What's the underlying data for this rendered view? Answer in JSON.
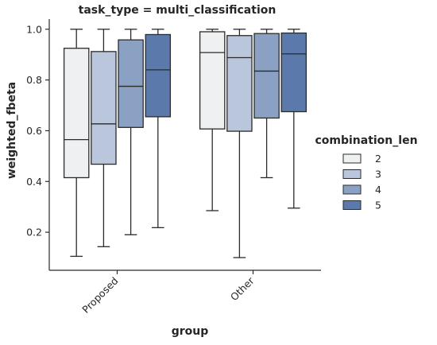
{
  "chart_data": {
    "type": "box",
    "title": "task_type = multi_classification",
    "xlabel": "group",
    "ylabel": "weighted_fbeta",
    "ylim": [
      0.05,
      1.04
    ],
    "yticks": [
      0.2,
      0.4,
      0.6,
      0.8,
      1.0
    ],
    "ytick_labels": [
      "0.2",
      "0.4",
      "0.6",
      "0.8",
      "1.0"
    ],
    "categories": [
      "Proposed",
      "Other"
    ],
    "grid": false,
    "legend": {
      "title": "combination_len",
      "placement": "right",
      "entries": [
        "2",
        "3",
        "4",
        "5"
      ]
    },
    "series": [
      {
        "name": "2",
        "color": "#eef0f2",
        "boxes": [
          {
            "category": "Proposed",
            "whisker_low": 0.105,
            "q1": 0.415,
            "median": 0.565,
            "q3": 0.925,
            "whisker_high": 1.0
          },
          {
            "category": "Other",
            "whisker_low": 0.285,
            "q1": 0.607,
            "median": 0.908,
            "q3": 0.99,
            "whisker_high": 1.0
          }
        ]
      },
      {
        "name": "3",
        "color": "#bac6db",
        "boxes": [
          {
            "category": "Proposed",
            "whisker_low": 0.143,
            "q1": 0.468,
            "median": 0.627,
            "q3": 0.912,
            "whisker_high": 1.0
          },
          {
            "category": "Other",
            "whisker_low": 0.1,
            "q1": 0.598,
            "median": 0.888,
            "q3": 0.975,
            "whisker_high": 1.0
          }
        ]
      },
      {
        "name": "4",
        "color": "#8ba1c4",
        "boxes": [
          {
            "category": "Proposed",
            "whisker_low": 0.19,
            "q1": 0.613,
            "median": 0.775,
            "q3": 0.958,
            "whisker_high": 1.0
          },
          {
            "category": "Other",
            "whisker_low": 0.415,
            "q1": 0.65,
            "median": 0.835,
            "q3": 0.983,
            "whisker_high": 1.0
          }
        ]
      },
      {
        "name": "5",
        "color": "#5b79ab",
        "boxes": [
          {
            "category": "Proposed",
            "whisker_low": 0.218,
            "q1": 0.655,
            "median": 0.84,
            "q3": 0.979,
            "whisker_high": 1.0
          },
          {
            "category": "Other",
            "whisker_low": 0.295,
            "q1": 0.675,
            "median": 0.903,
            "q3": 0.985,
            "whisker_high": 1.0
          }
        ]
      }
    ]
  }
}
